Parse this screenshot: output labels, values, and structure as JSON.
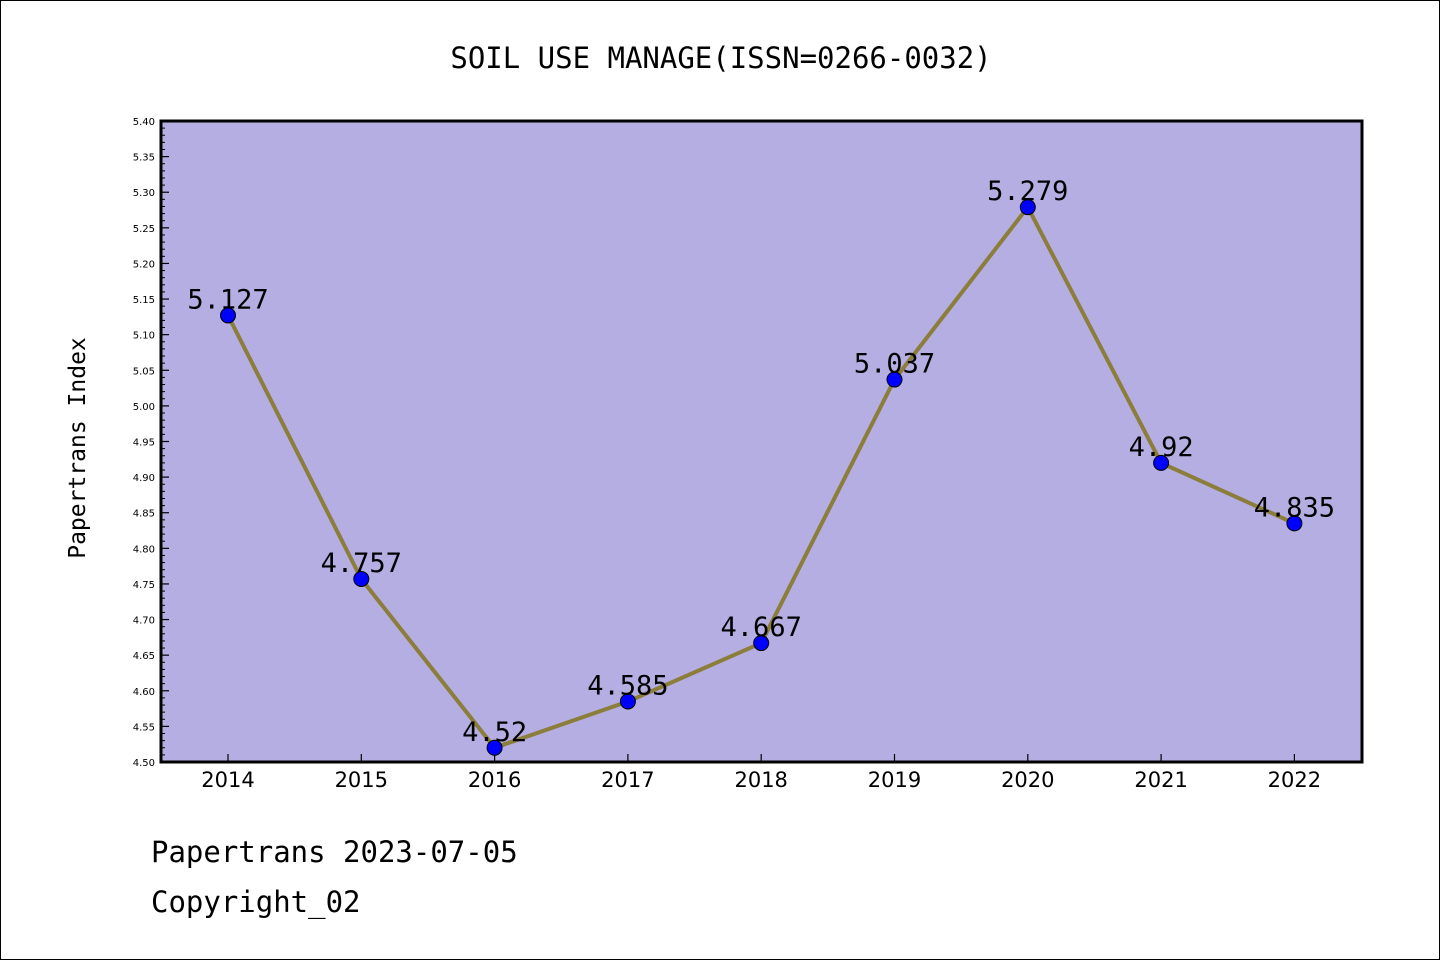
{
  "chart_data": {
    "type": "line",
    "title": "SOIL USE MANAGE(ISSN=0266-0032)",
    "xlabel": "",
    "ylabel": "Papertrans Index",
    "categories": [
      "2014",
      "2015",
      "2016",
      "2017",
      "2018",
      "2019",
      "2020",
      "2021",
      "2022"
    ],
    "series": [
      {
        "values": [
          5.127,
          4.757,
          4.52,
          4.585,
          4.667,
          5.037,
          5.279,
          4.92,
          4.835
        ],
        "data_labels": [
          "5.127",
          "4.757",
          "4.52",
          "4.585",
          "4.667",
          "5.037",
          "5.279",
          "4.92",
          "4.835"
        ]
      }
    ],
    "ylim": [
      4.5,
      5.4
    ],
    "yticks": [
      "4.50",
      "4.55",
      "4.60",
      "4.65",
      "4.70",
      "4.75",
      "4.80",
      "4.85",
      "4.90",
      "4.95",
      "5.00",
      "5.05",
      "5.10",
      "5.15",
      "5.20",
      "5.25",
      "5.30",
      "5.35",
      "5.40"
    ],
    "grid": false,
    "legend": "none",
    "colors": {
      "plot_background": "#b5aee2",
      "line": "#8b7d3a",
      "marker": "#0000ff"
    }
  },
  "footer": {
    "source": "Papertrans 2023-07-05",
    "copyright": "Copyright_02"
  }
}
